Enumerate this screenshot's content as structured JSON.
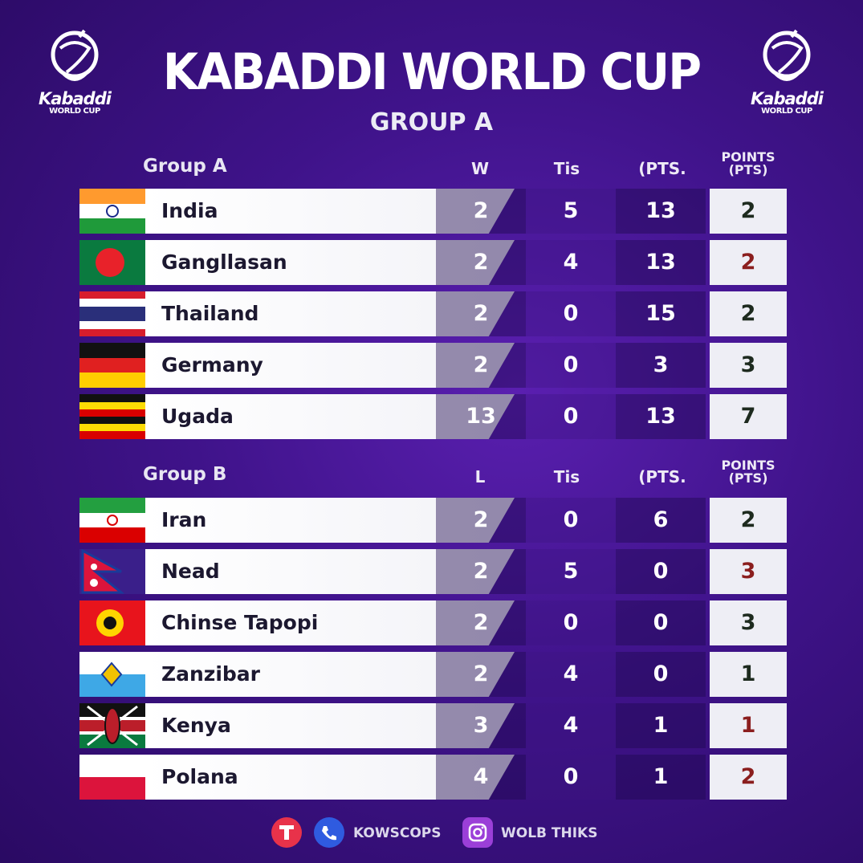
{
  "logo": {
    "name": "Kabaddi",
    "sub": "WORLD CUP"
  },
  "header": {
    "title": "KABADDI WORLD CUP",
    "subtitle": "GROUP A"
  },
  "groups": [
    {
      "title": "Group A",
      "columns": [
        "W",
        "Tis",
        "(PTS.",
        "POINTS (PTS)"
      ],
      "rows": [
        {
          "team": "India",
          "flag": "india-flag",
          "v1": "2",
          "v2": "5",
          "v3": "13",
          "pts": "2",
          "pts_color": "#1d2a1e"
        },
        {
          "team": "Gangllasan",
          "flag": "bangladesh-flag",
          "v1": "2",
          "v2": "4",
          "v3": "13",
          "pts": "2",
          "pts_color": "#8b1e1e"
        },
        {
          "team": "Thailand",
          "flag": "thailand-flag",
          "v1": "2",
          "v2": "0",
          "v3": "15",
          "pts": "2",
          "pts_color": "#1d2a1e"
        },
        {
          "team": "Germany",
          "flag": "germany-flag",
          "v1": "2",
          "v2": "0",
          "v3": "3",
          "pts": "3",
          "pts_color": "#1d2a1e"
        },
        {
          "team": "Ugada",
          "flag": "uganda-flag",
          "v1": "13",
          "v2": "0",
          "v3": "13",
          "pts": "7",
          "pts_color": "#1d2a1e"
        }
      ]
    },
    {
      "title": "Group B",
      "columns": [
        "L",
        "Tis",
        "(PTS.",
        "POINTS (PTS)"
      ],
      "rows": [
        {
          "team": "Iran",
          "flag": "iran-flag",
          "v1": "2",
          "v2": "0",
          "v3": "6",
          "pts": "2",
          "pts_color": "#1d2a1e"
        },
        {
          "team": "Nead",
          "flag": "nepal-flag",
          "v1": "2",
          "v2": "5",
          "v3": "0",
          "pts": "3",
          "pts_color": "#8b1e1e"
        },
        {
          "team": "Chinse Tapopi",
          "flag": "chinese-taipei-flag",
          "v1": "2",
          "v2": "0",
          "v3": "0",
          "pts": "3",
          "pts_color": "#1d2a1e"
        },
        {
          "team": "Zanzibar",
          "flag": "zanzibar-flag",
          "v1": "2",
          "v2": "4",
          "v3": "0",
          "pts": "1",
          "pts_color": "#1d2a1e"
        },
        {
          "team": "Kenya",
          "flag": "kenya-flag",
          "v1": "3",
          "v2": "4",
          "v3": "1",
          "pts": "1",
          "pts_color": "#8b1e1e"
        },
        {
          "team": "Polana",
          "flag": "poland-flag",
          "v1": "4",
          "v2": "0",
          "v3": "1",
          "pts": "2",
          "pts_color": "#8b1e1e"
        }
      ]
    }
  ],
  "footer": {
    "items": [
      {
        "icon": "brand-t-icon",
        "text": ""
      },
      {
        "icon": "phone-icon",
        "text": "KOWSCOPS"
      },
      {
        "icon": "instagram-icon",
        "text": "WOLB THIKS"
      }
    ]
  },
  "colors": {
    "background": "#3f138a",
    "pts_dark": "#1d2a1e",
    "pts_red": "#8b1e1e"
  }
}
